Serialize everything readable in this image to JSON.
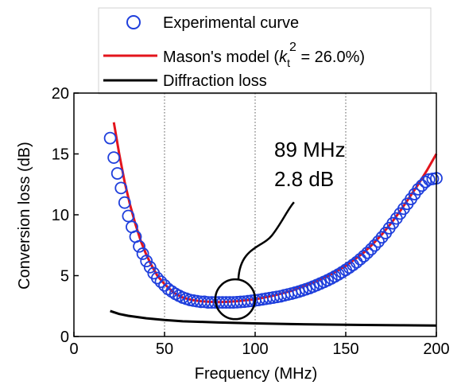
{
  "chart_data": {
    "type": "line",
    "xlabel": "Frequency (MHz)",
    "ylabel": "Conversion loss (dB)",
    "xlim": [
      0,
      200
    ],
    "ylim": [
      0,
      20
    ],
    "x_ticks": [
      0,
      50,
      100,
      150,
      200
    ],
    "y_ticks": [
      0,
      5,
      10,
      15,
      20
    ],
    "x_tick_labels": [
      "0",
      "50",
      "100",
      "150",
      "200"
    ],
    "y_tick_labels": [
      "0",
      "5",
      "10",
      "15",
      "20"
    ],
    "grid": "vertical-dotted",
    "legend_position": "top",
    "series": [
      {
        "key": "experimental",
        "name": "Experimental curve",
        "marker": "circle-open",
        "color": "#1f3fdc",
        "x": [
          20,
          22,
          24,
          26,
          28,
          30,
          32,
          34,
          36,
          38,
          40,
          42,
          44,
          46,
          48,
          50,
          52,
          54,
          56,
          58,
          60,
          62,
          64,
          66,
          68,
          70,
          72,
          74,
          76,
          78,
          80,
          82,
          84,
          86,
          88,
          90,
          92,
          94,
          96,
          98,
          100,
          102,
          104,
          106,
          108,
          110,
          112,
          114,
          116,
          118,
          120,
          122,
          124,
          126,
          128,
          130,
          132,
          134,
          136,
          138,
          140,
          142,
          144,
          146,
          148,
          150,
          152,
          154,
          156,
          158,
          160,
          162,
          164,
          166,
          168,
          170,
          172,
          174,
          176,
          178,
          180,
          182,
          184,
          186,
          188,
          190,
          192,
          194,
          196,
          198,
          200
        ],
        "y": [
          16.3,
          14.7,
          13.4,
          12.2,
          11.0,
          9.9,
          9.0,
          8.2,
          7.4,
          6.8,
          6.2,
          5.7,
          5.2,
          4.8,
          4.5,
          4.2,
          3.9,
          3.7,
          3.5,
          3.35,
          3.2,
          3.1,
          3.0,
          2.95,
          2.9,
          2.85,
          2.85,
          2.8,
          2.8,
          2.8,
          2.8,
          2.8,
          2.8,
          2.8,
          2.8,
          2.82,
          2.84,
          2.86,
          2.9,
          2.93,
          2.97,
          3.0,
          3.05,
          3.1,
          3.15,
          3.2,
          3.25,
          3.3,
          3.38,
          3.45,
          3.52,
          3.6,
          3.68,
          3.78,
          3.88,
          3.98,
          4.1,
          4.22,
          4.35,
          4.48,
          4.62,
          4.77,
          4.93,
          5.1,
          5.28,
          5.47,
          5.67,
          5.88,
          6.1,
          6.35,
          6.6,
          6.88,
          7.17,
          7.48,
          7.8,
          8.15,
          8.5,
          8.9,
          9.3,
          9.7,
          10.1,
          10.5,
          10.9,
          11.3,
          11.7,
          12.1,
          12.4,
          12.7,
          12.9,
          12.95,
          13.0
        ]
      },
      {
        "key": "mason",
        "name": "Mason's model",
        "color": "#e3141c",
        "x": [
          22,
          25,
          28,
          31,
          34,
          37,
          40,
          43,
          46,
          50,
          55,
          60,
          65,
          70,
          75,
          80,
          85,
          90,
          100,
          110,
          120,
          130,
          140,
          150,
          160,
          165,
          170,
          175,
          180,
          185,
          190,
          195,
          200
        ],
        "y": [
          17.6,
          15.0,
          12.7,
          10.8,
          9.2,
          7.8,
          6.7,
          5.8,
          5.0,
          4.3,
          3.6,
          3.2,
          3.0,
          2.9,
          2.85,
          2.83,
          2.85,
          2.9,
          3.05,
          3.35,
          3.75,
          4.3,
          4.95,
          5.8,
          6.9,
          7.6,
          8.4,
          9.3,
          10.3,
          11.4,
          12.5,
          13.7,
          15.0
        ]
      },
      {
        "key": "diffraction",
        "name": "Diffraction loss",
        "color": "#000000",
        "x": [
          20,
          25,
          30,
          40,
          50,
          60,
          70,
          80,
          100,
          120,
          140,
          160,
          180,
          200
        ],
        "y": [
          2.1,
          1.85,
          1.7,
          1.5,
          1.35,
          1.25,
          1.2,
          1.15,
          1.08,
          1.02,
          0.98,
          0.95,
          0.92,
          0.9
        ]
      }
    ],
    "legend": {
      "experimental_label": "Experimental curve",
      "mason_label_prefix": "Mason's model (",
      "mason_label_k": "k",
      "mason_label_sub": "t",
      "mason_label_sup": "2",
      "mason_label_suffix": " = 26.0%)",
      "diffraction_label": "Diffraction loss"
    },
    "annotation": {
      "line1": "89 MHz",
      "line2": "2.8 dB",
      "x": 89,
      "y": 2.8
    }
  }
}
